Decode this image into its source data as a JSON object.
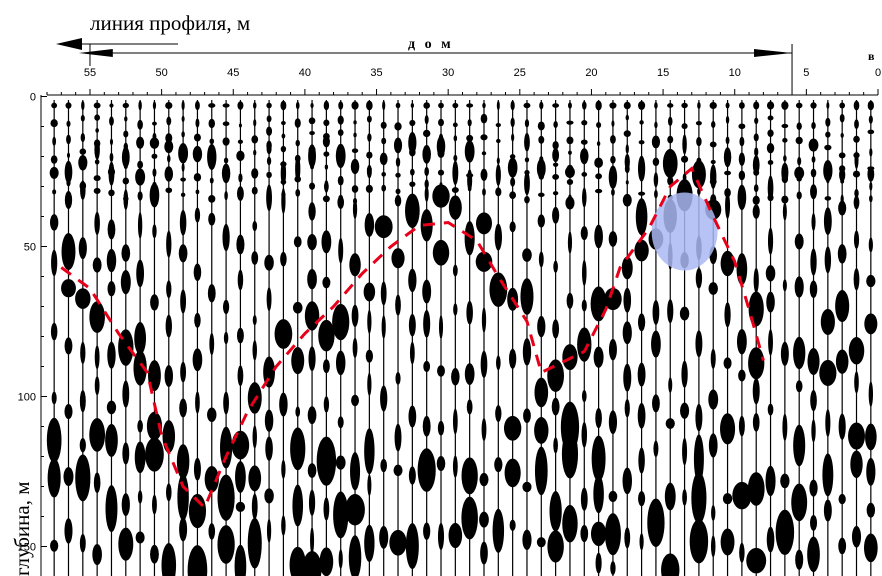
{
  "chart_data": {
    "type": "scatter",
    "title": "линия профиля, м",
    "house_label": "д о м",
    "marker_label": "в",
    "ylabel": "глубина, м",
    "x_axis": {
      "ticks": [
        55,
        50,
        45,
        40,
        35,
        30,
        25,
        20,
        15,
        10,
        5,
        0
      ],
      "range": [
        58,
        0
      ],
      "reversed": true
    },
    "y_axis": {
      "ticks": [
        0,
        50,
        100,
        150
      ],
      "range": [
        0,
        158
      ]
    },
    "house_extent": [
      55.5,
      6
    ],
    "trace_spacing": 1,
    "anomaly_boundary": {
      "color": "#e8001a",
      "style": "dashed",
      "points": [
        [
          57,
          57
        ],
        [
          55,
          64
        ],
        [
          53,
          79
        ],
        [
          51,
          92
        ],
        [
          50,
          113
        ],
        [
          48.5,
          130
        ],
        [
          47,
          137
        ],
        [
          45.5,
          120
        ],
        [
          44,
          105
        ],
        [
          42,
          90
        ],
        [
          40,
          79
        ],
        [
          38,
          70
        ],
        [
          36,
          59
        ],
        [
          34,
          50
        ],
        [
          32,
          43
        ],
        [
          30,
          42
        ],
        [
          28,
          48
        ],
        [
          26.5,
          60
        ],
        [
          24.5,
          75
        ],
        [
          23.5,
          92
        ],
        [
          20.5,
          85
        ],
        [
          19,
          71
        ],
        [
          18,
          57
        ],
        [
          16,
          44
        ],
        [
          14.5,
          30
        ],
        [
          13,
          24
        ],
        [
          11.5,
          40
        ],
        [
          10,
          55
        ],
        [
          9,
          71
        ],
        [
          8,
          88
        ]
      ]
    },
    "highlight": {
      "color": "#a9b9f2",
      "center": [
        13.5,
        45
      ],
      "radius_x": 2.3,
      "radius_y": 13
    }
  }
}
